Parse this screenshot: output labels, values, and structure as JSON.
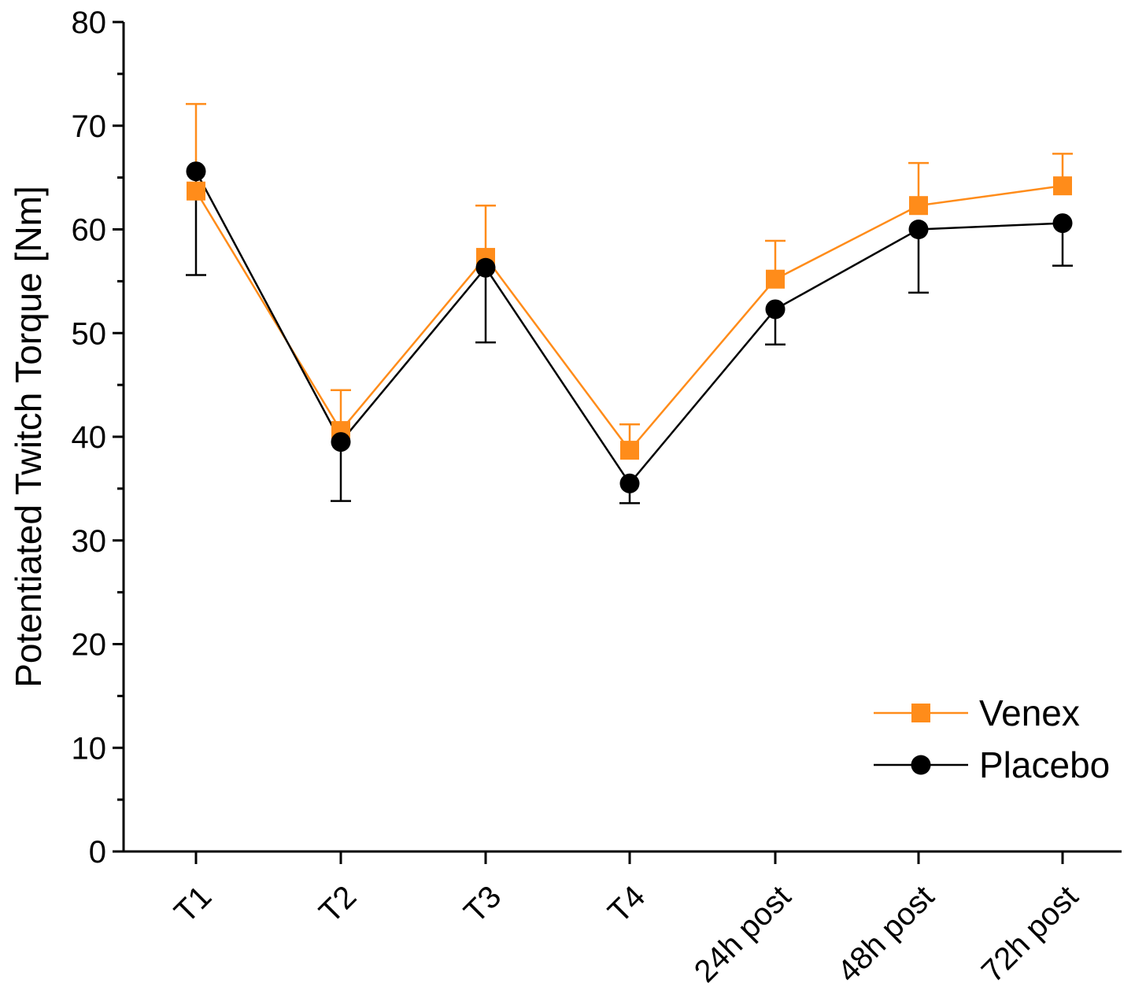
{
  "chart_data": {
    "type": "line",
    "title": "",
    "xlabel": "",
    "ylabel": "Potentiated Twitch Torque [Nm]",
    "categories": [
      "T1",
      "T2",
      "T3",
      "T4",
      "24h post",
      "48h post",
      "72h post"
    ],
    "ylim": [
      0,
      80
    ],
    "yticks": [
      0,
      10,
      20,
      30,
      40,
      50,
      60,
      70,
      80
    ],
    "grid": false,
    "legend_position": "bottom-right",
    "series": [
      {
        "name": "Venex",
        "color": "#FF8C1A",
        "marker": "square",
        "error_direction": "up",
        "values": [
          63.7,
          40.6,
          57.3,
          38.7,
          55.2,
          62.3,
          64.2
        ],
        "errors": [
          8.4,
          3.9,
          5.0,
          2.5,
          3.7,
          4.1,
          3.1
        ]
      },
      {
        "name": "Placebo",
        "color": "#000000",
        "marker": "circle",
        "error_direction": "down",
        "values": [
          65.6,
          39.5,
          56.3,
          35.5,
          52.3,
          60.0,
          60.6
        ],
        "errors": [
          10.0,
          5.7,
          7.2,
          1.9,
          3.4,
          6.1,
          4.1
        ]
      }
    ]
  }
}
